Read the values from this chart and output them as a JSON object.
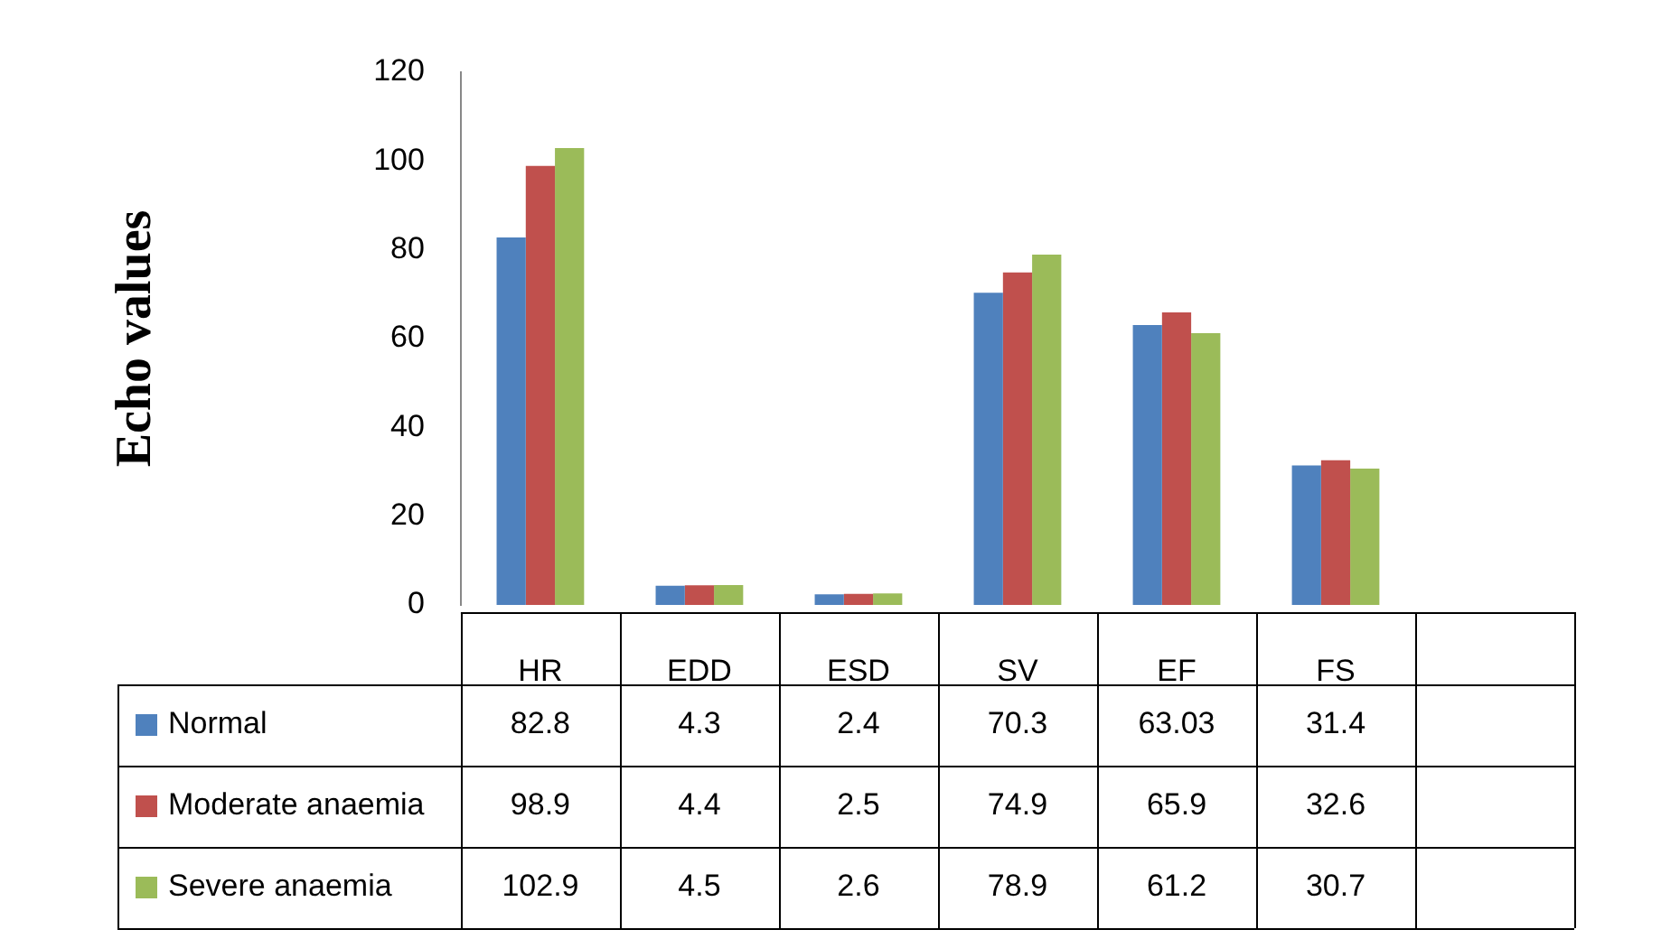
{
  "chart_data": {
    "type": "bar",
    "ylabel": "Echo values",
    "categories": [
      "HR",
      "EDD",
      "ESD",
      "SV",
      "EF",
      "FS",
      null
    ],
    "series": [
      {
        "name": "Normal",
        "color": "#4f81bd",
        "values": [
          82.8,
          4.3,
          2.4,
          70.3,
          63.03,
          31.4,
          null
        ]
      },
      {
        "name": "Moderate anaemia",
        "color": "#c0504d",
        "values": [
          98.9,
          4.4,
          2.5,
          74.9,
          65.9,
          32.6,
          null
        ]
      },
      {
        "name": "Severe anaemia",
        "color": "#9bbb59",
        "values": [
          102.9,
          4.5,
          2.6,
          78.9,
          61.2,
          30.7,
          null
        ]
      }
    ],
    "ylim": [
      0,
      120
    ],
    "yticks": [
      0,
      20,
      40,
      60,
      80,
      100,
      120
    ],
    "grid": false,
    "legend": "bottom",
    "data_labels": true
  }
}
